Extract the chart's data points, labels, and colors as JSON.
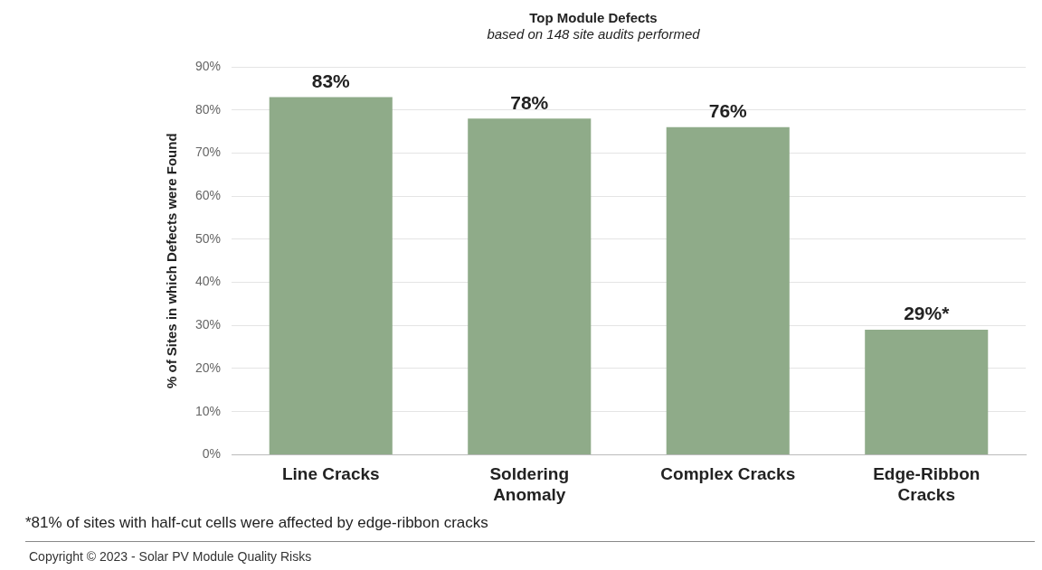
{
  "chart_data": {
    "type": "bar",
    "title": "Top Module Defects",
    "subtitle": "based on 148 site audits performed",
    "ylabel": "% of Sites in which Defects were Found",
    "categories": [
      "Line Cracks",
      "Soldering Anomaly",
      "Complex Cracks",
      "Edge-Ribbon Cracks"
    ],
    "values": [
      83,
      78,
      76,
      29
    ],
    "color": "#8fab89",
    "value_labels": [
      "83%",
      "78%",
      "76%",
      "29%*"
    ],
    "ylim": [
      0,
      90
    ],
    "yticks": [
      {
        "value": 0,
        "label": "0%"
      },
      {
        "value": 10,
        "label": "10%"
      },
      {
        "value": 20,
        "label": "20%"
      },
      {
        "value": 30,
        "label": "30%"
      },
      {
        "value": 40,
        "label": "40%"
      },
      {
        "value": 50,
        "label": "50%"
      },
      {
        "value": 60,
        "label": "60%"
      },
      {
        "value": 70,
        "label": "70%"
      },
      {
        "value": 80,
        "label": "80%"
      },
      {
        "value": 90,
        "label": "90%"
      }
    ],
    "grid": "y",
    "legend": false,
    "annotations": [
      "*81% of sites with half-cut cells were affected by edge-ribbon cracks",
      "Copyright © 2023 - Solar PV Module Quality Risks"
    ]
  }
}
